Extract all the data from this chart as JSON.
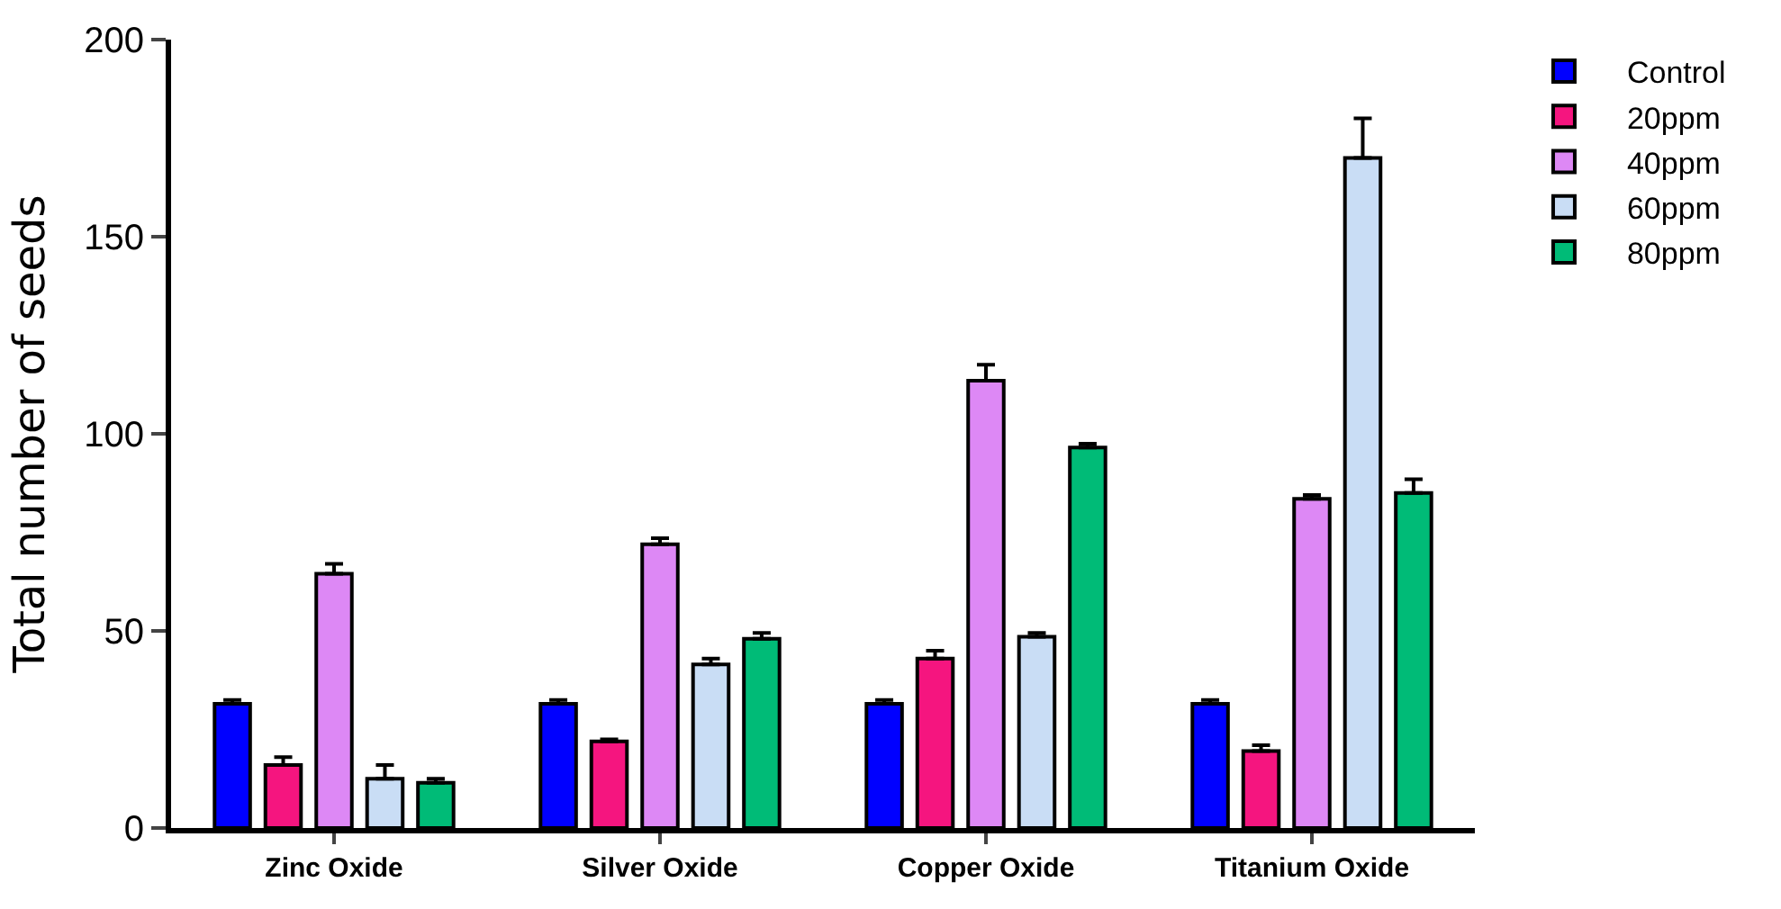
{
  "chart_data": {
    "type": "bar",
    "ylabel": "Total number of seeds",
    "categories": [
      "Zinc Oxide",
      "Silver Oxide",
      "Copper Oxide",
      "Titanium Oxide"
    ],
    "series": [
      {
        "name": "Control",
        "color": "#0000ff",
        "values": [
          31.5,
          31.5,
          31.5,
          31.5
        ],
        "errors": [
          [
            31.5,
            32.5
          ],
          [
            31.5,
            32.5
          ],
          [
            31.5,
            32.5
          ],
          [
            31.5,
            32.5
          ]
        ]
      },
      {
        "name": "20ppm",
        "color": "#f5157f",
        "values": [
          16,
          22,
          43,
          19.5
        ],
        "errors": [
          [
            16,
            18
          ],
          [
            22,
            22.5
          ],
          [
            43,
            45
          ],
          [
            19.5,
            21
          ]
        ]
      },
      {
        "name": "40ppm",
        "color": "#dd88f5",
        "values": [
          64.5,
          72,
          113.5,
          83.5
        ],
        "errors": [
          [
            64.5,
            67
          ],
          [
            72,
            73.5
          ],
          [
            113.5,
            117.5
          ],
          [
            83.5,
            84.5
          ]
        ]
      },
      {
        "name": "60ppm",
        "color": "#c9ddf5",
        "values": [
          12.5,
          41.5,
          48.5,
          170
        ],
        "errors": [
          [
            12.5,
            16
          ],
          [
            41.5,
            43
          ],
          [
            48.5,
            49.5
          ],
          [
            170,
            180
          ]
        ]
      },
      {
        "name": "80ppm",
        "color": "#00bb77",
        "values": [
          11.5,
          48,
          96.5,
          85
        ],
        "errors": [
          [
            11.5,
            12.5
          ],
          [
            48,
            49.5
          ],
          [
            96.5,
            97.5
          ],
          [
            85,
            88.5
          ]
        ]
      }
    ],
    "ylim": [
      0,
      200
    ],
    "yticks": [
      0,
      50,
      100,
      150,
      200
    ],
    "legend": "right"
  }
}
